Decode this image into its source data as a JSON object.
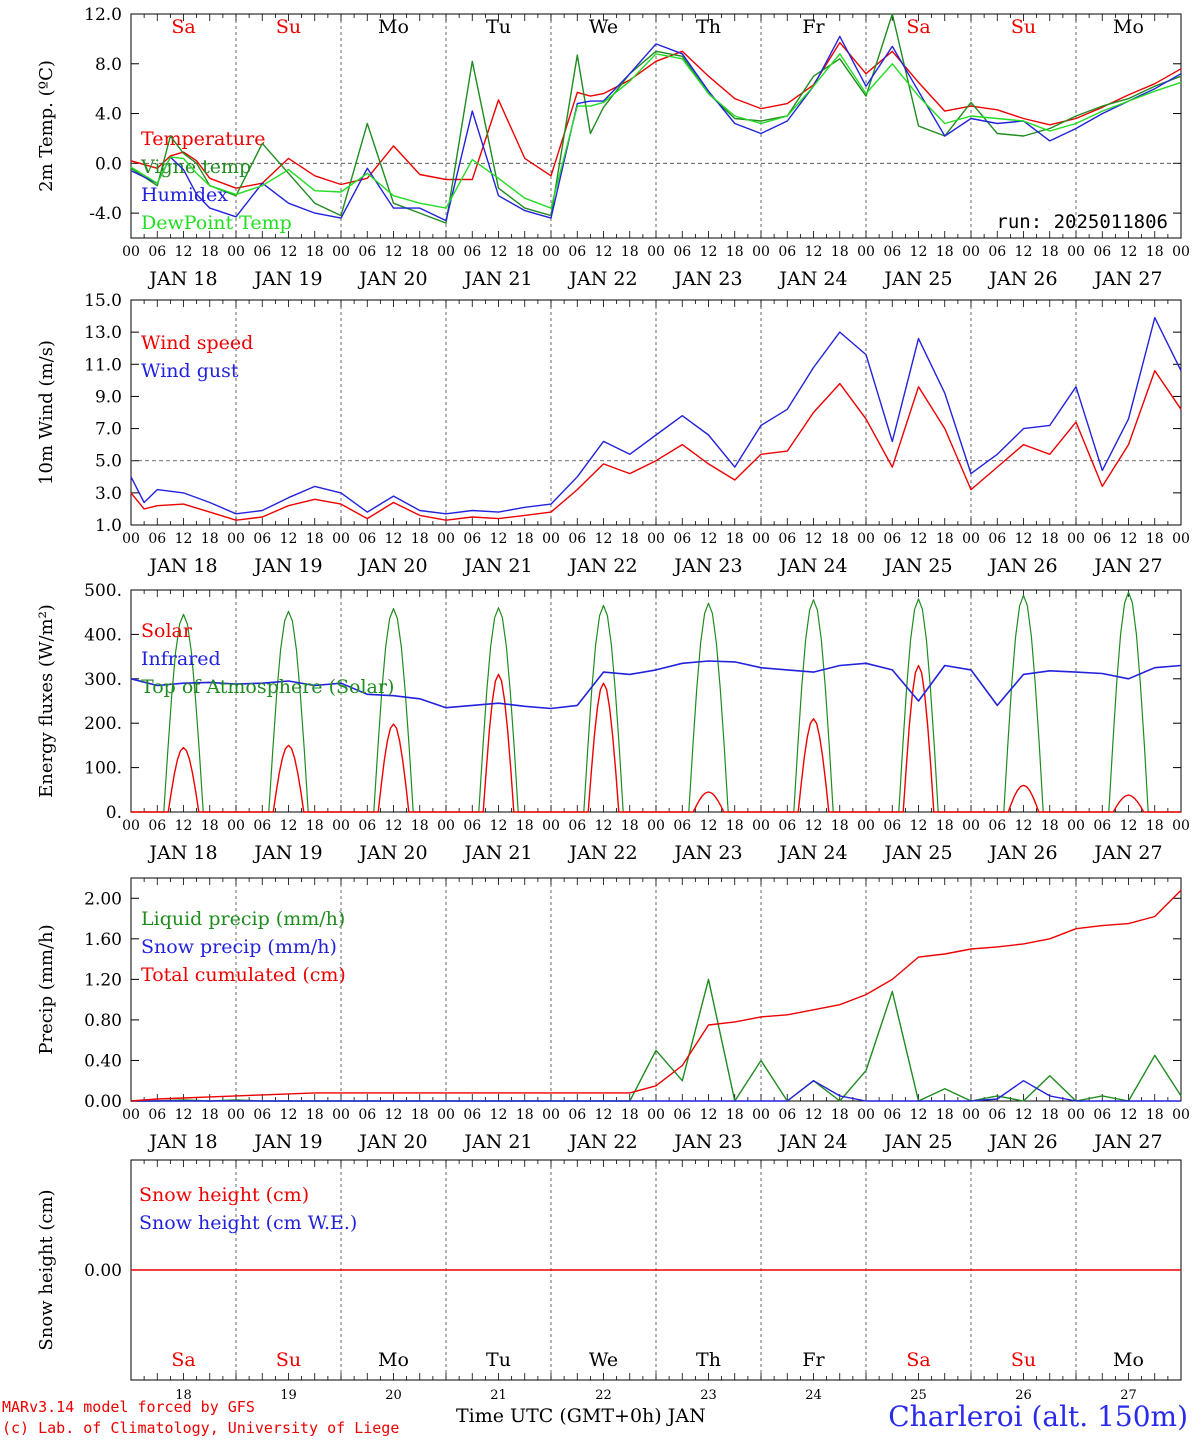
{
  "station": "Charleroi (alt. 150m)",
  "credits": [
    "MARv3.14 model forced by GFS",
    "(c) Lab. of Climatology, University of Liege"
  ],
  "xaxis_label": "Time UTC (GMT+0h) JAN",
  "run_label": "run: 2025011806",
  "days": {
    "weekdays_top": [
      "Sa",
      "Su",
      "Mo",
      "Tu",
      "We",
      "Th",
      "Fr",
      "Sa",
      "Su",
      "Mo"
    ],
    "weekdays_bottom": [
      "Sa",
      "Su",
      "Mo",
      "Tu",
      "We",
      "Th",
      "Fr",
      "Sa",
      "Su",
      "Mo"
    ],
    "weekend_flags": [
      true,
      true,
      false,
      false,
      false,
      false,
      false,
      true,
      true,
      false
    ],
    "dates": [
      "JAN 18",
      "JAN 19",
      "JAN 20",
      "JAN 21",
      "JAN 22",
      "JAN 23",
      "JAN 24",
      "JAN 25",
      "JAN 26",
      "JAN 27"
    ],
    "day_numbers": [
      "18",
      "19",
      "20",
      "21",
      "22",
      "23",
      "24",
      "25",
      "26",
      "27"
    ],
    "hour_ticks": [
      "00",
      "06",
      "12",
      "18"
    ]
  },
  "colors": {
    "red": "#ee0000",
    "green": "#1f8c1f",
    "blue": "#2222dd",
    "lightgreen": "#22dd22"
  },
  "chart_data": [
    {
      "type": "line",
      "ylabel": "2m Temp. (ºC)",
      "ylim": [
        -6,
        12
      ],
      "yticks": [
        "12.0",
        "8.0",
        "4.0",
        "0.0",
        "-4.0"
      ],
      "ytick_values": [
        12,
        8,
        4,
        0,
        -4
      ],
      "reference_line": 0,
      "x_hours": [
        0,
        6,
        9,
        12,
        15,
        18,
        24,
        30,
        36,
        42,
        48,
        54,
        60,
        66,
        72,
        78,
        84,
        90,
        96,
        102,
        105,
        108,
        114,
        120,
        126,
        132,
        138,
        144,
        150,
        156,
        162,
        168,
        174,
        180,
        186,
        192,
        198,
        204,
        210,
        216,
        222,
        228,
        234,
        240
      ],
      "series": [
        {
          "name": "Temperature",
          "color": "red",
          "values": [
            0.2,
            -0.4,
            0.6,
            0.9,
            0.2,
            -1.2,
            -2.0,
            -1.6,
            0.4,
            -1.0,
            -1.7,
            -1.2,
            1.4,
            -0.9,
            -1.3,
            -1.3,
            5.1,
            0.4,
            -1.0,
            5.7,
            5.4,
            5.6,
            6.7,
            8.2,
            9.0,
            7.0,
            5.2,
            4.4,
            4.8,
            6.3,
            9.7,
            7.2,
            9.0,
            6.5,
            4.2,
            4.6,
            4.3,
            3.6,
            3.1,
            3.6,
            4.5,
            5.5,
            6.4,
            7.6
          ]
        },
        {
          "name": "Vigne temp",
          "color": "green",
          "values": [
            -0.4,
            -1.8,
            2.2,
            0.8,
            0.0,
            -1.8,
            -2.6,
            1.6,
            -0.8,
            -3.2,
            -4.2,
            3.2,
            -3.2,
            -4.0,
            -4.8,
            8.2,
            -2.0,
            -3.6,
            -4.2,
            8.7,
            2.4,
            4.5,
            7.2,
            9.0,
            8.6,
            5.6,
            3.6,
            3.4,
            3.8,
            7.0,
            8.4,
            5.4,
            12.0,
            3.0,
            2.2,
            4.9,
            2.4,
            2.2,
            2.8,
            3.8,
            4.6,
            5.2,
            6.2,
            7.0
          ]
        },
        {
          "name": "Humidex",
          "color": "blue",
          "values": [
            -0.6,
            -1.6,
            0.5,
            -0.5,
            -2.5,
            -3.6,
            -4.3,
            -1.6,
            -3.2,
            -4.0,
            -4.4,
            -0.4,
            -3.6,
            -3.6,
            -4.6,
            4.2,
            -2.6,
            -3.8,
            -4.4,
            4.8,
            5.0,
            5.0,
            7.2,
            9.6,
            8.8,
            5.8,
            3.2,
            2.4,
            3.4,
            6.2,
            10.2,
            6.2,
            9.4,
            5.8,
            2.2,
            3.6,
            3.2,
            3.4,
            1.8,
            2.8,
            4.0,
            5.0,
            6.0,
            7.2
          ]
        },
        {
          "name": "DewPoint Temp",
          "color": "lightgreen",
          "values": [
            -0.3,
            -1.6,
            0.5,
            0.4,
            -0.8,
            -1.8,
            -2.5,
            -1.8,
            -0.5,
            -2.2,
            -2.3,
            -0.8,
            -2.6,
            -3.2,
            -3.6,
            0.3,
            -1.2,
            -2.8,
            -3.6,
            4.6,
            4.6,
            4.9,
            6.6,
            8.8,
            8.4,
            5.6,
            3.8,
            3.2,
            3.8,
            6.2,
            8.8,
            5.6,
            8.0,
            5.4,
            3.2,
            3.8,
            3.6,
            3.4,
            2.6,
            3.2,
            4.2,
            5.0,
            5.8,
            6.5
          ]
        }
      ]
    },
    {
      "type": "line",
      "ylabel": "10m Wind (m/s)",
      "ylim": [
        1,
        15
      ],
      "yticks": [
        "15.0",
        "13.0",
        "11.0",
        "9.0",
        "7.0",
        "5.0",
        "3.0",
        "1.0"
      ],
      "ytick_values": [
        15,
        13,
        11,
        9,
        7,
        5,
        3,
        1
      ],
      "reference_line": 5,
      "x_hours": [
        0,
        3,
        6,
        12,
        18,
        24,
        30,
        36,
        42,
        48,
        54,
        60,
        66,
        72,
        78,
        84,
        90,
        96,
        102,
        108,
        114,
        120,
        126,
        132,
        138,
        144,
        150,
        156,
        162,
        168,
        174,
        180,
        186,
        192,
        198,
        204,
        210,
        216,
        222,
        228,
        234,
        240
      ],
      "series": [
        {
          "name": "Wind speed",
          "color": "red",
          "values": [
            3.0,
            2.0,
            2.2,
            2.3,
            1.8,
            1.3,
            1.5,
            2.2,
            2.6,
            2.3,
            1.4,
            2.4,
            1.6,
            1.3,
            1.5,
            1.4,
            1.6,
            1.8,
            3.2,
            4.8,
            4.2,
            5.0,
            6.0,
            4.8,
            3.8,
            5.4,
            5.6,
            8.0,
            9.8,
            7.6,
            4.6,
            9.6,
            7.0,
            3.2,
            4.6,
            6.0,
            5.4,
            7.4,
            3.4,
            6.0,
            10.6,
            8.2
          ]
        },
        {
          "name": "Wind gust",
          "color": "blue",
          "values": [
            4.0,
            2.4,
            3.2,
            3.0,
            2.4,
            1.7,
            1.9,
            2.7,
            3.4,
            3.0,
            1.8,
            2.8,
            1.9,
            1.7,
            1.9,
            1.8,
            2.1,
            2.3,
            4.0,
            6.2,
            5.4,
            6.6,
            7.8,
            6.6,
            4.6,
            7.2,
            8.2,
            10.8,
            13.0,
            11.6,
            6.2,
            12.6,
            9.2,
            4.2,
            5.4,
            7.0,
            7.2,
            9.6,
            4.4,
            7.6,
            13.9,
            10.6
          ]
        }
      ]
    },
    {
      "type": "line",
      "ylabel": "Energy fluxes (W/m²)",
      "ylim": [
        0,
        500
      ],
      "yticks": [
        "500.",
        "400.",
        "300.",
        "200.",
        "100.",
        "0."
      ],
      "ytick_values": [
        500,
        400,
        300,
        200,
        100,
        0
      ],
      "day_peaks_toa": [
        445,
        452,
        458,
        460,
        465,
        470,
        478,
        480,
        488,
        495
      ],
      "day_peaks_solar": [
        145,
        150,
        198,
        310,
        290,
        45,
        210,
        330,
        60,
        38
      ],
      "series": [
        {
          "name": "Solar",
          "color": "red"
        },
        {
          "name": "Infrared",
          "color": "blue",
          "x_hours": [
            0,
            6,
            12,
            18,
            24,
            30,
            36,
            42,
            48,
            54,
            60,
            66,
            72,
            78,
            84,
            90,
            96,
            102,
            108,
            114,
            120,
            126,
            132,
            138,
            144,
            150,
            156,
            162,
            168,
            174,
            180,
            186,
            192,
            198,
            204,
            210,
            216,
            222,
            228,
            234,
            240
          ],
          "values": [
            300,
            285,
            290,
            292,
            288,
            290,
            295,
            285,
            290,
            265,
            262,
            255,
            235,
            240,
            245,
            238,
            233,
            240,
            315,
            310,
            320,
            335,
            340,
            338,
            325,
            320,
            315,
            330,
            335,
            320,
            250,
            330,
            320,
            240,
            310,
            318,
            315,
            312,
            300,
            325,
            330
          ]
        },
        {
          "name": "Top of Atmosphere (Solar)",
          "color": "green"
        }
      ]
    },
    {
      "type": "line",
      "ylabel": "Precip (mm/h)",
      "ylim": [
        0,
        2.2
      ],
      "yticks": [
        "2.00",
        "1.60",
        "1.20",
        "0.80",
        "0.40",
        "0.00"
      ],
      "ytick_values": [
        2.0,
        1.6,
        1.2,
        0.8,
        0.4,
        0.0
      ],
      "x_hours": [
        0,
        6,
        12,
        18,
        24,
        30,
        36,
        42,
        48,
        60,
        72,
        84,
        96,
        114,
        120,
        126,
        132,
        138,
        144,
        150,
        156,
        162,
        168,
        174,
        180,
        186,
        192,
        198,
        204,
        210,
        216,
        222,
        228,
        234,
        240
      ],
      "series": [
        {
          "name": "Liquid precip (mm/h)",
          "color": "green",
          "values": [
            0,
            0,
            0.01,
            0,
            0.01,
            0,
            0,
            0,
            0,
            0,
            0,
            0,
            0,
            0,
            0.5,
            0.2,
            1.2,
            0.0,
            0.4,
            0.0,
            0.2,
            0.0,
            0.3,
            1.08,
            0.0,
            0.12,
            0.0,
            0.05,
            0.0,
            0.25,
            0.0,
            0.05,
            0.0,
            0.45,
            0.05
          ]
        },
        {
          "name": "Snow precip (mm/h)",
          "color": "blue",
          "values": [
            0,
            0,
            0,
            0,
            0,
            0,
            0,
            0,
            0,
            0,
            0,
            0,
            0,
            0,
            0,
            0,
            0,
            0,
            0,
            0,
            0.2,
            0.05,
            0,
            0,
            0,
            0,
            0,
            0.02,
            0.2,
            0.05,
            0,
            0,
            0,
            0,
            0
          ]
        },
        {
          "name": "Total cumulated (cm)",
          "color": "red",
          "values": [
            0,
            0.02,
            0.03,
            0.04,
            0.05,
            0.06,
            0.07,
            0.08,
            0.08,
            0.08,
            0.08,
            0.08,
            0.08,
            0.08,
            0.15,
            0.35,
            0.75,
            0.78,
            0.83,
            0.85,
            0.9,
            0.95,
            1.05,
            1.2,
            1.42,
            1.45,
            1.5,
            1.52,
            1.55,
            1.6,
            1.7,
            1.73,
            1.75,
            1.82,
            2.08
          ]
        }
      ]
    },
    {
      "type": "line",
      "ylabel": "Snow height (cm)",
      "yticks": [
        "0.00"
      ],
      "series": [
        {
          "name": "Snow height (cm)",
          "color": "red",
          "values": [
            0,
            0
          ]
        },
        {
          "name": "Snow height (cm W.E.)",
          "color": "blue",
          "values": [
            0,
            0
          ]
        }
      ]
    }
  ]
}
